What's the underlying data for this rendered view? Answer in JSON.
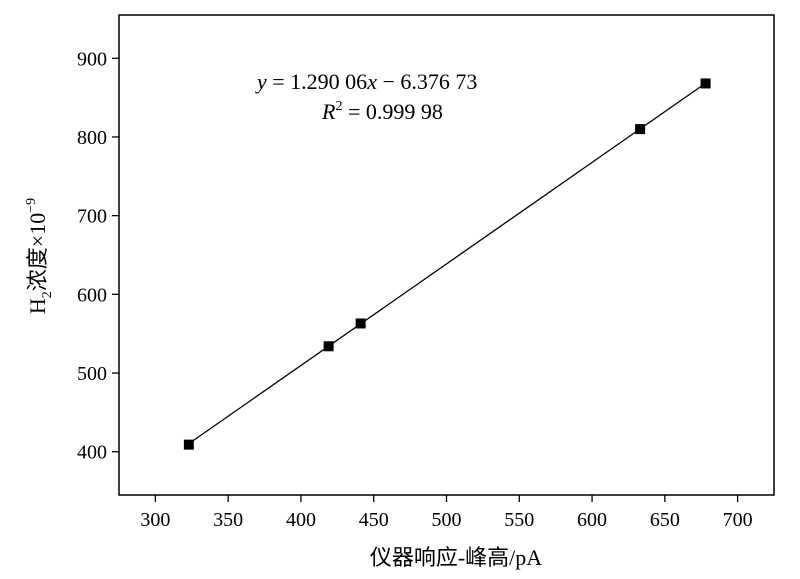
{
  "chart_data": {
    "type": "scatter",
    "x": [
      323,
      419,
      441,
      633,
      678
    ],
    "y": [
      409,
      534,
      563,
      810,
      868
    ],
    "fit_line": {
      "x": [
        323,
        678
      ],
      "y": [
        410.3,
        868.3
      ]
    },
    "xlim": [
      275,
      725
    ],
    "ylim": [
      345,
      955
    ],
    "xticks": [
      300,
      350,
      400,
      450,
      500,
      550,
      600,
      650,
      700
    ],
    "yticks": [
      400,
      500,
      600,
      700,
      800,
      900
    ],
    "xlabel": "仪器响应-峰高/pA",
    "ylabel_parts": {
      "main": "H",
      "sub": "2",
      "text": "浓度×10",
      "sup": "−9"
    },
    "annotation": {
      "equation": {
        "y_var": "y",
        "eq": " = 1.290 06",
        "x_var": "x",
        "rest": " − 6.376 73"
      },
      "r2": {
        "var": "R",
        "sup": "2",
        "rest": " = 0.999 98"
      }
    },
    "grid": false,
    "marker_color": "#000000",
    "line_color": "#000000"
  }
}
